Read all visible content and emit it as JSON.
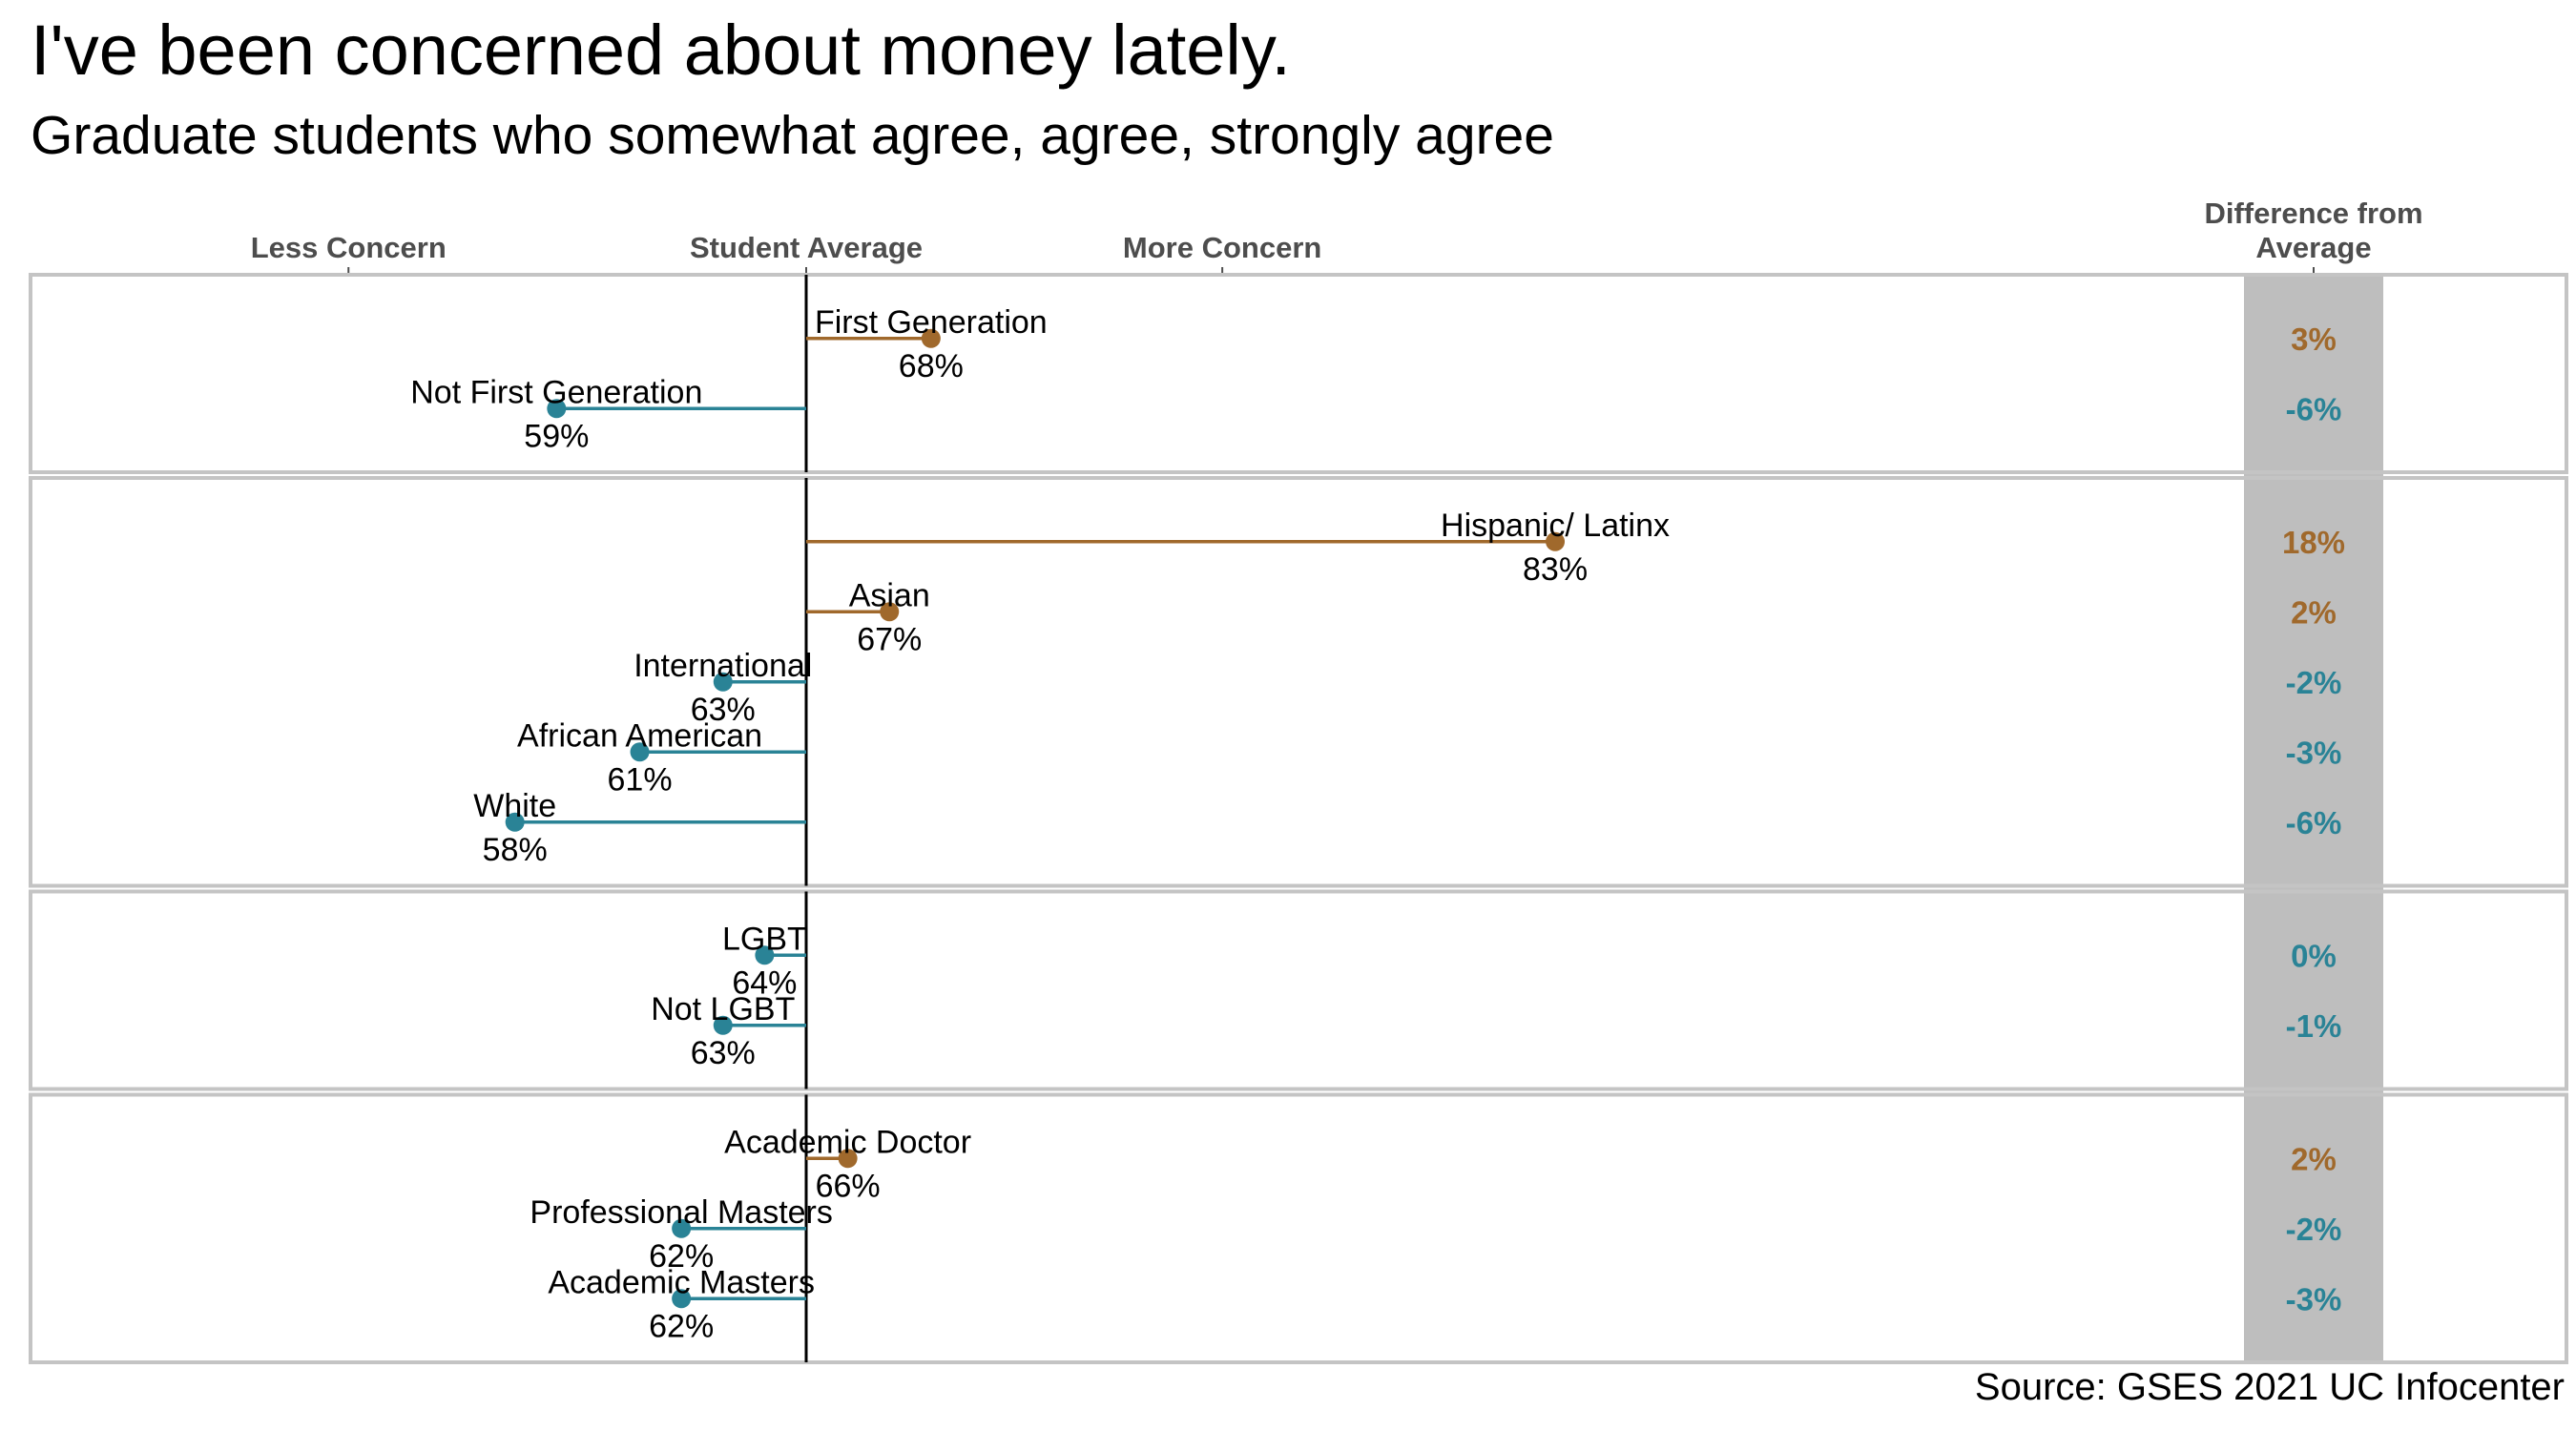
{
  "title": "I've been concerned about money lately.",
  "subtitle": "Graduate students who somewhat agree, agree, strongly agree",
  "source": "Source: GSES 2021 UC Infocenter",
  "colors": {
    "above": "#a0692c",
    "below": "#2a8396",
    "panel_border": "#c4c4c4",
    "diff_band": "#bebebe",
    "axis_text": "#4d4d4d"
  },
  "chart_data": {
    "type": "lollipop",
    "average": 65,
    "xlim": [
      50,
      85
    ],
    "axis_labels": [
      {
        "label": "Less Concern",
        "x": 54
      },
      {
        "label": "Student Average",
        "x": 65
      },
      {
        "label": "More Concern",
        "x": 75
      }
    ],
    "difference_header": [
      "Difference from",
      "Average"
    ],
    "groups": [
      {
        "items": [
          {
            "label": "First Generation",
            "value": 68,
            "value_label": "68%",
            "diff_label": "3%"
          },
          {
            "label": "Not First Generation",
            "value": 59,
            "value_label": "59%",
            "diff_label": "-6%"
          }
        ]
      },
      {
        "items": [
          {
            "label": "Hispanic/ Latinx",
            "value": 83,
            "value_label": "83%",
            "diff_label": "18%"
          },
          {
            "label": "Asian",
            "value": 67,
            "value_label": "67%",
            "diff_label": "2%"
          },
          {
            "label": "International",
            "value": 63,
            "value_label": "63%",
            "diff_label": "-2%"
          },
          {
            "label": "African American",
            "value": 61,
            "value_label": "61%",
            "diff_label": "-3%"
          },
          {
            "label": "White",
            "value": 58,
            "value_label": "58%",
            "diff_label": "-6%"
          }
        ]
      },
      {
        "items": [
          {
            "label": "LGBT",
            "value": 64,
            "value_label": "64%",
            "diff_label": "0%"
          },
          {
            "label": "Not LGBT",
            "value": 63,
            "value_label": "63%",
            "diff_label": "-1%"
          }
        ]
      },
      {
        "items": [
          {
            "label": "Academic Doctor",
            "value": 66,
            "value_label": "66%",
            "diff_label": "2%"
          },
          {
            "label": "Professional Masters",
            "value": 62,
            "value_label": "62%",
            "diff_label": "-2%"
          },
          {
            "label": "Academic Masters",
            "value": 62,
            "value_label": "62%",
            "diff_label": "-3%"
          }
        ]
      }
    ]
  }
}
